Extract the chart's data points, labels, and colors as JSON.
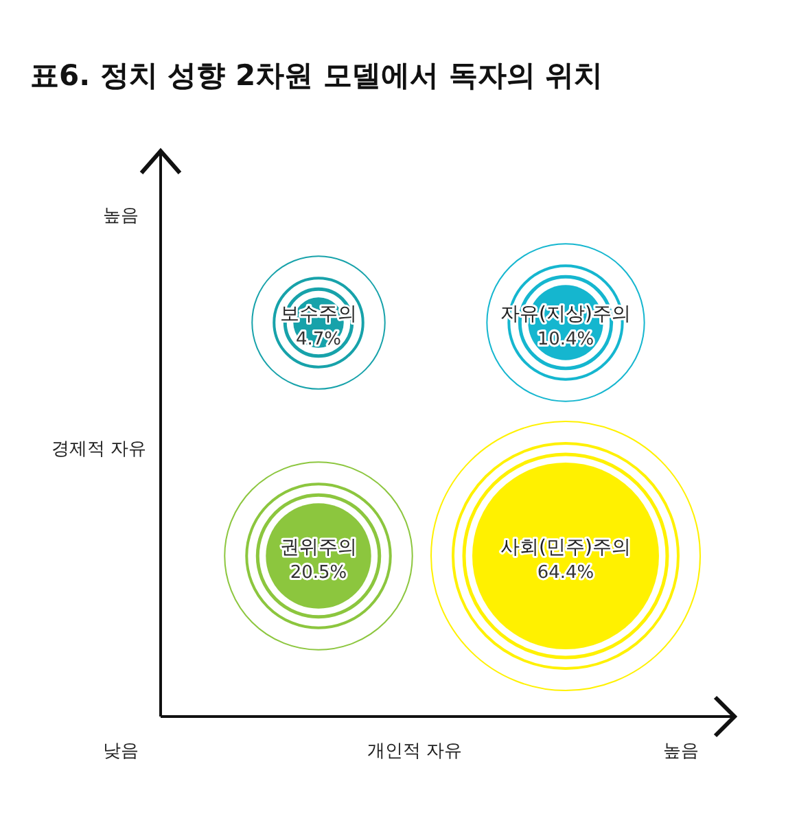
{
  "chart_data": {
    "type": "other",
    "title": "표6. 정치 성향 2차원 모델에서 독자의 위치",
    "xlabel": "개인적 자유",
    "ylabel": "경제적 자유",
    "annotations": [
      "높음",
      "낮음",
      "높음"
    ],
    "categories": [
      "보수주의",
      "자유(지상)주의",
      "권위주의",
      "사회(민주)주의"
    ],
    "values": [
      4.7,
      10.4,
      20.5,
      64.4
    ],
    "value_labels": [
      "4.7%",
      "10.4%",
      "20.5%",
      "64.4%"
    ],
    "colors": [
      "#17a2aa",
      "#15b6cf",
      "#8cc63e",
      "#fff100"
    ]
  }
}
